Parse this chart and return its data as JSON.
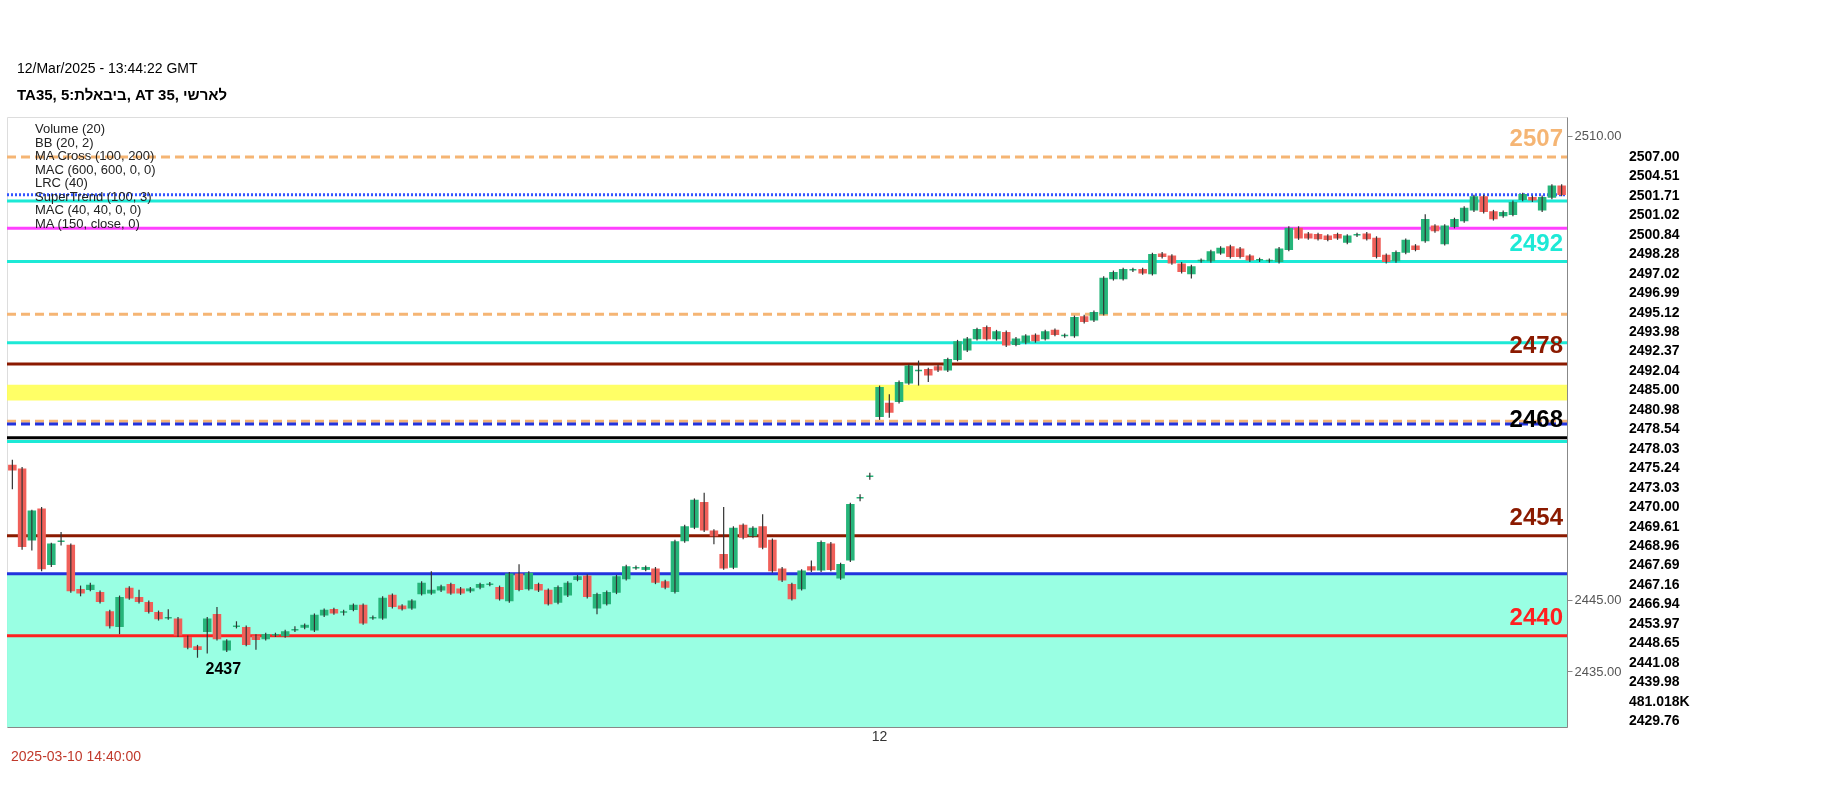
{
  "chart_data": {
    "type": "candlestick",
    "title": "TA35, 5:ביבאלת, AT 35, לארשי",
    "categories": [
      null,
      null,
      null,
      null,
      null,
      null,
      null,
      null,
      null,
      null,
      null,
      null,
      null,
      null,
      null,
      null,
      null,
      null,
      null,
      null,
      null,
      null,
      null,
      null,
      null,
      null,
      null,
      null,
      null,
      null,
      null,
      null,
      null,
      null,
      null,
      null,
      null,
      null,
      null,
      null,
      null,
      null,
      null,
      null,
      null,
      null,
      null,
      null,
      null,
      null,
      null,
      null,
      null,
      null,
      null,
      null,
      null,
      null,
      null,
      null,
      null,
      null,
      null,
      null,
      null,
      null,
      null,
      null,
      null,
      null,
      null,
      null,
      null,
      null,
      null,
      null,
      null,
      null,
      null,
      null,
      null,
      null,
      null,
      null,
      null,
      null,
      null,
      null,
      null,
      "12",
      null,
      null,
      null,
      null,
      null,
      null,
      null,
      null,
      null,
      null,
      null,
      null,
      null,
      null,
      null,
      null,
      null,
      null,
      null,
      null,
      null,
      null,
      null,
      null,
      null,
      null,
      null,
      null,
      null,
      null,
      null,
      null,
      null,
      null,
      null,
      null,
      null,
      null,
      null,
      null,
      null,
      null,
      null,
      null,
      null,
      null,
      null,
      null,
      null,
      null,
      null,
      null,
      null,
      null,
      null,
      null,
      null,
      null,
      null,
      null,
      null,
      null,
      null,
      null,
      null,
      null,
      null,
      null,
      null,
      null
    ],
    "ohlc": [
      [
        2463.8,
        2464.6,
        2460.5,
        2463.2
      ],
      [
        2463.3,
        2463.6,
        2452.0,
        2452.5
      ],
      [
        2453.4,
        2457.6,
        2451.9,
        2457.4
      ],
      [
        2457.7,
        2458.0,
        2449.0,
        2449.4
      ],
      [
        2450.0,
        2453.0,
        2449.6,
        2452.8
      ],
      [
        2453.2,
        2454.5,
        2452.6,
        2453.2
      ],
      [
        2452.6,
        2452.9,
        2446.0,
        2446.3
      ],
      [
        2446.4,
        2447.0,
        2445.5,
        2446.0
      ],
      [
        2446.5,
        2447.4,
        2446.2,
        2447.0
      ],
      [
        2446.0,
        2446.3,
        2444.5,
        2444.8
      ],
      [
        2443.3,
        2443.6,
        2441.0,
        2441.4
      ],
      [
        2441.3,
        2445.6,
        2440.2,
        2445.3
      ],
      [
        2446.6,
        2446.9,
        2445.0,
        2445.3
      ],
      [
        2445.3,
        2446.4,
        2444.5,
        2444.8
      ],
      [
        2444.6,
        2444.9,
        2443.1,
        2443.4
      ],
      [
        2443.2,
        2443.5,
        2442.1,
        2442.4
      ],
      [
        2442.5,
        2443.7,
        2442.2,
        2442.5
      ],
      [
        2442.3,
        2442.6,
        2439.8,
        2440.1
      ],
      [
        2439.7,
        2440.0,
        2438.1,
        2438.4
      ],
      [
        2438.4,
        2438.7,
        2436.9,
        2438.1
      ],
      [
        2440.6,
        2442.6,
        2437.5,
        2442.3
      ],
      [
        2442.9,
        2444.0,
        2439.3,
        2439.6
      ],
      [
        2438.0,
        2439.5,
        2437.7,
        2439.2
      ],
      [
        2441.3,
        2442.0,
        2441.0,
        2441.3
      ],
      [
        2441.1,
        2441.4,
        2438.5,
        2438.8
      ],
      [
        2439.9,
        2440.2,
        2438.0,
        2439.5
      ],
      [
        2439.6,
        2440.4,
        2439.3,
        2440.1
      ],
      [
        2440.1,
        2440.4,
        2439.8,
        2440.1
      ],
      [
        2440.0,
        2440.8,
        2439.7,
        2440.5
      ],
      [
        2440.8,
        2441.3,
        2440.5,
        2440.8
      ],
      [
        2441.2,
        2441.7,
        2440.9,
        2441.4
      ],
      [
        2440.8,
        2443.1,
        2440.5,
        2442.8
      ],
      [
        2442.9,
        2443.8,
        2442.6,
        2443.5
      ],
      [
        2443.6,
        2443.9,
        2442.9,
        2443.2
      ],
      [
        2443.3,
        2443.6,
        2442.8,
        2443.3
      ],
      [
        2443.7,
        2444.5,
        2443.4,
        2444.2
      ],
      [
        2444.2,
        2444.5,
        2441.5,
        2441.8
      ],
      [
        2442.5,
        2442.8,
        2442.2,
        2442.5
      ],
      [
        2442.5,
        2445.5,
        2442.2,
        2445.2
      ],
      [
        2445.6,
        2445.9,
        2443.8,
        2444.1
      ],
      [
        2444.1,
        2444.4,
        2443.5,
        2443.8
      ],
      [
        2443.9,
        2445.1,
        2443.6,
        2444.8
      ],
      [
        2445.9,
        2447.6,
        2445.6,
        2447.3
      ],
      [
        2446.0,
        2449.0,
        2445.7,
        2446.3
      ],
      [
        2446.4,
        2447.1,
        2446.1,
        2446.8
      ],
      [
        2447.1,
        2447.4,
        2445.7,
        2446.0
      ],
      [
        2446.5,
        2446.8,
        2445.7,
        2446.0
      ],
      [
        2446.3,
        2446.8,
        2446.0,
        2446.5
      ],
      [
        2446.8,
        2447.4,
        2446.5,
        2447.1
      ],
      [
        2447.2,
        2447.5,
        2446.9,
        2447.2
      ],
      [
        2446.7,
        2447.0,
        2444.9,
        2445.2
      ],
      [
        2444.9,
        2448.9,
        2444.6,
        2448.6
      ],
      [
        2448.6,
        2450.0,
        2446.2,
        2446.5
      ],
      [
        2446.6,
        2449.0,
        2446.3,
        2448.7
      ],
      [
        2447.1,
        2447.4,
        2446.1,
        2446.4
      ],
      [
        2446.3,
        2446.6,
        2444.2,
        2444.5
      ],
      [
        2444.7,
        2447.0,
        2444.4,
        2446.7
      ],
      [
        2445.7,
        2447.6,
        2445.4,
        2447.3
      ],
      [
        2447.9,
        2448.5,
        2447.6,
        2448.2
      ],
      [
        2448.3,
        2448.6,
        2445.2,
        2445.5
      ],
      [
        2443.9,
        2446.0,
        2443.0,
        2445.7
      ],
      [
        2444.5,
        2446.3,
        2444.2,
        2446.0
      ],
      [
        2446.1,
        2448.5,
        2445.8,
        2448.2
      ],
      [
        2448.0,
        2449.9,
        2447.7,
        2449.6
      ],
      [
        2449.5,
        2449.8,
        2449.2,
        2449.5
      ],
      [
        2449.3,
        2449.8,
        2449.0,
        2449.5
      ],
      [
        2449.3,
        2449.6,
        2447.2,
        2447.5
      ],
      [
        2447.5,
        2447.8,
        2446.5,
        2446.8
      ],
      [
        2446.2,
        2453.4,
        2445.9,
        2453.1
      ],
      [
        2453.3,
        2455.5,
        2453.0,
        2455.2
      ],
      [
        2455.2,
        2459.2,
        2454.9,
        2458.9
      ],
      [
        2458.6,
        2460.0,
        2454.5,
        2454.8
      ],
      [
        2454.6,
        2454.9,
        2452.8,
        2454.0
      ],
      [
        2451.3,
        2458.0,
        2449.2,
        2449.5
      ],
      [
        2449.6,
        2455.3,
        2449.3,
        2455.0
      ],
      [
        2455.4,
        2455.7,
        2453.5,
        2453.8
      ],
      [
        2454.0,
        2455.3,
        2453.7,
        2455.0
      ],
      [
        2455.2,
        2457.0,
        2452.1,
        2452.4
      ],
      [
        2453.3,
        2453.6,
        2448.8,
        2449.1
      ],
      [
        2449.3,
        2449.6,
        2447.5,
        2447.8
      ],
      [
        2447.1,
        2447.4,
        2444.9,
        2445.2
      ],
      [
        2446.6,
        2449.3,
        2446.3,
        2449.0
      ],
      [
        2449.6,
        2450.5,
        2448.9,
        2449.2
      ],
      [
        2449.2,
        2453.3,
        2448.9,
        2453.0
      ],
      [
        2452.8,
        2453.1,
        2449.0,
        2449.3
      ],
      [
        2448.1,
        2450.2,
        2447.8,
        2449.9
      ],
      [
        2450.6,
        2458.6,
        2450.3,
        2458.3
      ],
      [
        2459.3,
        2459.8,
        2458.8,
        2459.3
      ],
      [
        2462.3,
        2462.8,
        2461.8,
        2462.3
      ],
      [
        2470.7,
        2475.0,
        2470.2,
        2474.7
      ],
      [
        2472.5,
        2473.8,
        2470.5,
        2471.3
      ],
      [
        2472.8,
        2475.7,
        2472.5,
        2475.4
      ],
      [
        2475.4,
        2478.0,
        2475.1,
        2477.7
      ],
      [
        2477.1,
        2478.5,
        2475.0,
        2477.1
      ],
      [
        2477.2,
        2477.5,
        2475.5,
        2476.5
      ],
      [
        2477.6,
        2477.9,
        2476.9,
        2477.2
      ],
      [
        2477.2,
        2478.9,
        2476.9,
        2478.6
      ],
      [
        2478.7,
        2481.4,
        2478.4,
        2481.1
      ],
      [
        2480.0,
        2481.8,
        2479.7,
        2481.5
      ],
      [
        2481.6,
        2483.1,
        2481.3,
        2482.8
      ],
      [
        2483.1,
        2483.4,
        2481.3,
        2481.6
      ],
      [
        2481.6,
        2482.8,
        2481.3,
        2482.5
      ],
      [
        2482.4,
        2482.7,
        2480.4,
        2480.7
      ],
      [
        2480.8,
        2481.8,
        2480.5,
        2481.5
      ],
      [
        2481.1,
        2482.2,
        2480.8,
        2481.9
      ],
      [
        2482.0,
        2482.3,
        2481.0,
        2481.3
      ],
      [
        2481.6,
        2482.8,
        2481.3,
        2482.5
      ],
      [
        2482.7,
        2483.0,
        2481.9,
        2482.2
      ],
      [
        2482.0,
        2482.3,
        2481.7,
        2482.0
      ],
      [
        2482.0,
        2484.8,
        2481.7,
        2484.5
      ],
      [
        2484.6,
        2484.9,
        2483.7,
        2484.0
      ],
      [
        2484.2,
        2485.5,
        2483.9,
        2485.2
      ],
      [
        2485.1,
        2490.3,
        2484.8,
        2490.0
      ],
      [
        2490.0,
        2491.1,
        2489.7,
        2490.8
      ],
      [
        2490.0,
        2491.5,
        2489.7,
        2491.2
      ],
      [
        2491.2,
        2491.5,
        2490.9,
        2491.2
      ],
      [
        2491.2,
        2491.5,
        2490.5,
        2490.8
      ],
      [
        2490.7,
        2493.6,
        2490.4,
        2493.3
      ],
      [
        2493.4,
        2493.7,
        2492.8,
        2493.1
      ],
      [
        2493.1,
        2493.4,
        2491.9,
        2492.2
      ],
      [
        2492.0,
        2492.3,
        2490.7,
        2491.0
      ],
      [
        2490.7,
        2491.9,
        2490.0,
        2491.6
      ],
      [
        2492.5,
        2492.8,
        2492.2,
        2492.5
      ],
      [
        2492.5,
        2494.0,
        2492.2,
        2493.7
      ],
      [
        2493.6,
        2494.5,
        2493.3,
        2494.2
      ],
      [
        2494.4,
        2494.7,
        2492.8,
        2493.1
      ],
      [
        2494.1,
        2494.4,
        2492.8,
        2493.1
      ],
      [
        2493.1,
        2493.4,
        2492.3,
        2492.6
      ],
      [
        2492.6,
        2492.9,
        2492.3,
        2492.6
      ],
      [
        2492.5,
        2492.8,
        2492.2,
        2492.5
      ],
      [
        2492.4,
        2494.4,
        2492.1,
        2494.1
      ],
      [
        2494.1,
        2497.3,
        2493.8,
        2497.0
      ],
      [
        2497.0,
        2497.3,
        2495.4,
        2495.7
      ],
      [
        2496.2,
        2496.5,
        2495.4,
        2495.7
      ],
      [
        2496.1,
        2496.4,
        2495.3,
        2495.6
      ],
      [
        2495.9,
        2496.2,
        2495.2,
        2495.5
      ],
      [
        2496.1,
        2496.4,
        2495.4,
        2495.7
      ],
      [
        2495.1,
        2496.2,
        2494.8,
        2495.9
      ],
      [
        2496.1,
        2496.4,
        2495.8,
        2496.1
      ],
      [
        2496.2,
        2496.5,
        2495.3,
        2495.6
      ],
      [
        2495.6,
        2495.9,
        2492.8,
        2493.1
      ],
      [
        2493.2,
        2493.5,
        2492.1,
        2492.4
      ],
      [
        2492.5,
        2493.9,
        2492.2,
        2493.6
      ],
      [
        2493.7,
        2495.6,
        2493.4,
        2495.3
      ],
      [
        2494.5,
        2494.8,
        2493.8,
        2494.1
      ],
      [
        2495.3,
        2499.0,
        2495.0,
        2498.2
      ],
      [
        2497.3,
        2497.6,
        2496.4,
        2496.7
      ],
      [
        2494.9,
        2497.6,
        2494.6,
        2497.3
      ],
      [
        2497.3,
        2498.5,
        2497.0,
        2498.2
      ],
      [
        2498.1,
        2500.1,
        2497.8,
        2499.8
      ],
      [
        2499.6,
        2501.7,
        2499.3,
        2501.4
      ],
      [
        2501.4,
        2501.7,
        2499.1,
        2499.4
      ],
      [
        2499.3,
        2499.6,
        2498.1,
        2498.4
      ],
      [
        2498.8,
        2499.5,
        2498.5,
        2499.2
      ],
      [
        2499.0,
        2500.9,
        2498.7,
        2500.6
      ],
      [
        2501.1,
        2502.0,
        2500.8,
        2501.7
      ],
      [
        2501.3,
        2501.6,
        2500.7,
        2501.0
      ],
      [
        2499.6,
        2501.6,
        2499.3,
        2501.3
      ],
      [
        2501.4,
        2503.2,
        2501.1,
        2502.9
      ],
      [
        2502.9,
        2503.2,
        2501.5,
        2501.8
      ]
    ],
    "ylim": [
      2427.2,
      2512.6
    ],
    "yticks": [
      {
        "value": 2510,
        "label": "2510.00"
      },
      {
        "value": 2445,
        "label": "2445.00"
      },
      {
        "value": 2435,
        "label": "2435.00"
      }
    ],
    "ref_lines": [
      {
        "axis": "y",
        "value": 2507.0,
        "label": "2507",
        "color": "#f5b574",
        "line_style": "dashed"
      },
      {
        "axis": "y",
        "value": 2501.71,
        "color": "#3355ff",
        "line_style": "dotted"
      },
      {
        "axis": "y",
        "value": 2500.84,
        "color": "#1de9d6"
      },
      {
        "axis": "y",
        "value": 2497.02,
        "color": "#ff40ff"
      },
      {
        "axis": "y",
        "value": 2492.37,
        "label": "2492",
        "color": "#1de9d6"
      },
      {
        "axis": "y",
        "value": 2485.0,
        "color": "#f5b574",
        "line_style": "dashed"
      },
      {
        "axis": "y",
        "value": 2480.98,
        "color": "#1de9d6"
      },
      {
        "axis": "y",
        "value": 2478.03,
        "label": "2478",
        "color": "#8b1a00"
      },
      {
        "axis": "y",
        "value": 2470.0,
        "color": "#f5b574",
        "line_style": "dashed"
      },
      {
        "axis": "y",
        "value": 2469.61,
        "color": "#2233dd",
        "line_style": "dashed"
      },
      {
        "axis": "y",
        "value": 2467.69,
        "label": "2468",
        "color": "#000000"
      },
      {
        "axis": "y",
        "value": 2467.16,
        "color": "#1de9d6"
      },
      {
        "axis": "y",
        "value": 2453.97,
        "label": "2454",
        "color": "#8b1a00"
      },
      {
        "axis": "y",
        "value": 2448.65,
        "color": "#2233dd"
      },
      {
        "axis": "y",
        "value": 2439.98,
        "label": "2440",
        "color": "#ff2020"
      }
    ],
    "bands": [
      {
        "axis": "y",
        "from": 2427.2,
        "to": 2448.65,
        "color": "#8effe0"
      },
      {
        "axis": "y",
        "from": 2472.9,
        "to": 2475.1,
        "color": "#ffff55"
      }
    ],
    "annotations": [
      "12/Mar/2025 - 13:44:22 GMT",
      "Volume (20)",
      "BB (20, 2)",
      "MA Cross (100, 200)",
      "MAC (600, 600, 0, 0)",
      "LRC (40)",
      "SuperTrend (100, 3)",
      "MAC (40, 40, 0, 0)",
      "MA (150, close, 0)",
      "2025-03-10 14:40:00",
      "2437",
      "2507.00",
      "2504.51",
      "2501.71",
      "2501.02",
      "2500.84",
      "2498.28",
      "2497.02",
      "2496.99",
      "2495.12",
      "2493.98",
      "2492.37",
      "2492.04",
      "2485.00",
      "2480.98",
      "2478.54",
      "2478.03",
      "2475.24",
      "2473.03",
      "2470.00",
      "2469.61",
      "2468.96",
      "2467.69",
      "2467.16",
      "2466.94",
      "2453.97",
      "2448.65",
      "2441.08",
      "2439.98",
      "481.018K",
      "2429.76"
    ],
    "grid": false
  }
}
